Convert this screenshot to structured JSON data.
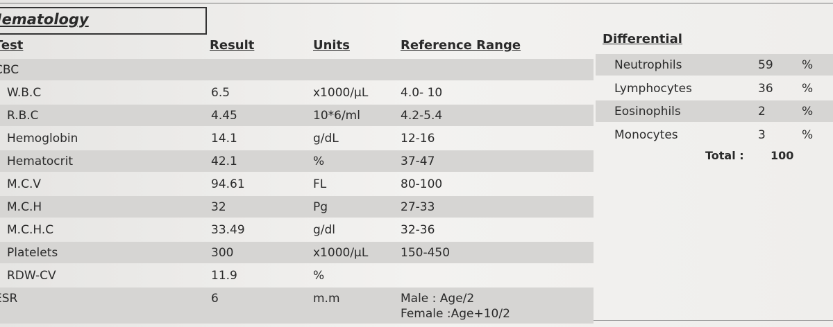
{
  "header": {
    "title": "Hematology"
  },
  "table": {
    "columns": {
      "test": "Test",
      "result": "Result",
      "units": "Units",
      "range": "Reference Range"
    },
    "rows": [
      {
        "test": "CBC"
      },
      {
        "test": "W.B.C",
        "result": 6.5,
        "units": "x1000/µL",
        "range": [
          "4.0- 10"
        ]
      },
      {
        "test": "R.B.C",
        "result": 4.45,
        "units": "10*6/ml",
        "range": [
          "4.2-5.4"
        ]
      },
      {
        "test": "Hemoglobin",
        "result": 14.1,
        "units": "g/dL",
        "range": [
          "12-16"
        ]
      },
      {
        "test": "Hematocrit",
        "result": 42.1,
        "units": "%",
        "range": [
          "37-47"
        ]
      },
      {
        "test": "M.C.V",
        "result": 94.61,
        "units": "FL",
        "range": [
          "80-100"
        ]
      },
      {
        "test": "M.C.H",
        "result": 32,
        "units": "Pg",
        "range": [
          "27-33"
        ]
      },
      {
        "test": "M.C.H.C",
        "result": 33.49,
        "units": "g/dl",
        "range": [
          "32-36"
        ]
      },
      {
        "test": "Platelets",
        "result": 300,
        "units": "x1000/µL",
        "range": [
          "150-450"
        ]
      },
      {
        "test": "RDW-CV",
        "result": 11.9,
        "units": "%"
      },
      {
        "test": "ESR",
        "result": 6,
        "units": "m.m",
        "range": [
          "Male : Age/2",
          "Female :Age+10/2"
        ]
      }
    ]
  },
  "differential": {
    "title": "Differential",
    "rows": [
      {
        "name": "Neutrophils",
        "value": 59,
        "unit": "%"
      },
      {
        "name": "Lymphocytes",
        "value": 36,
        "unit": "%"
      },
      {
        "name": "Eosinophils",
        "value": 2,
        "unit": "%"
      },
      {
        "name": "Monocytes",
        "value": 3,
        "unit": "%"
      }
    ],
    "total_label": "Total :",
    "total": 100
  }
}
